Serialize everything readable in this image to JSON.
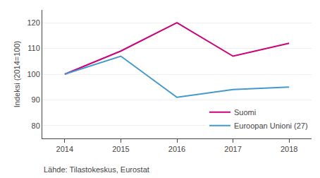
{
  "chart_data": {
    "type": "line",
    "x": [
      2014,
      2015,
      2016,
      2017,
      2018
    ],
    "series": [
      {
        "name": "Suomi",
        "color": "#cc007a",
        "values": [
          100,
          109,
          120,
          107,
          112
        ]
      },
      {
        "name": "Euroopan Unioni (27)",
        "color": "#4499cc",
        "values": [
          100,
          107,
          91,
          94,
          95
        ]
      }
    ],
    "ylabel": "Indeksi (2014=100)",
    "xlim": [
      2013.6,
      2018.4
    ],
    "xticks": [
      2014,
      2015,
      2016,
      2017,
      2018
    ],
    "ylim": [
      75,
      125
    ],
    "yticks": [
      80,
      90,
      100,
      110,
      120
    ],
    "grid": "y",
    "legend": "lower right",
    "annotations": [
      "Lähde: Tilastokeskus, Eurostat"
    ]
  }
}
